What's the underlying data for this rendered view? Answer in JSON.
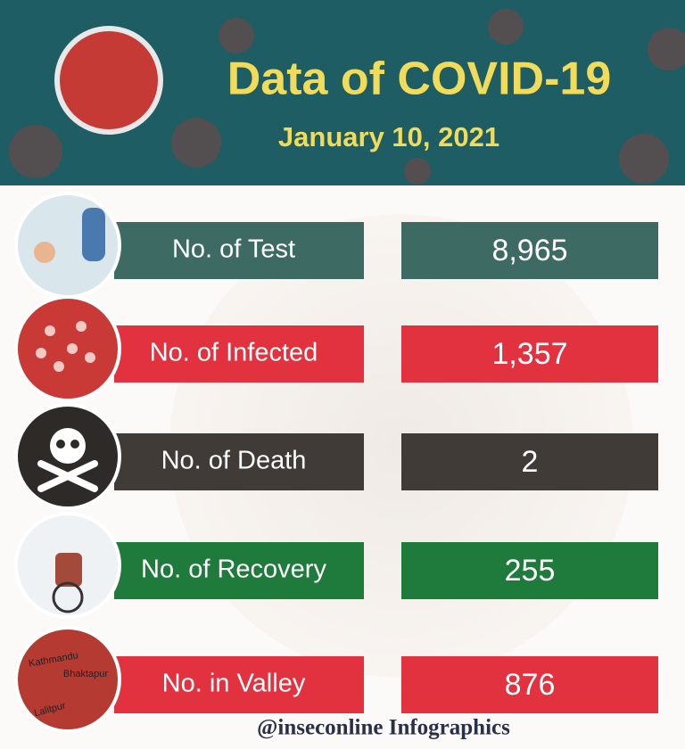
{
  "header": {
    "title": "Data of COVID-19",
    "date": "January 10, 2021"
  },
  "rows": [
    {
      "label": "No. of Test",
      "value": "8,965",
      "color": "#3d6b63"
    },
    {
      "label": "No. of Infected",
      "value": "1,357",
      "color": "#e2323f"
    },
    {
      "label": "No. of Death",
      "value": "2",
      "color": "#403b37"
    },
    {
      "label": "No. of Recovery",
      "value": "255",
      "color": "#1e7b3b"
    },
    {
      "label": "No. in Valley",
      "value": "876",
      "color": "#e2323f"
    }
  ],
  "map_labels": [
    "Kathmandu",
    "Bhaktapur",
    "Lalitpur"
  ],
  "footer": {
    "credit": "@inseconline Infographics"
  }
}
